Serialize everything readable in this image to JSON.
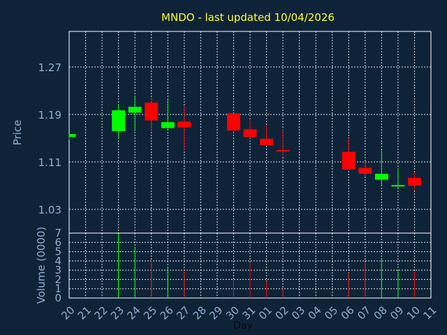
{
  "chart_data": {
    "type": "candlestick",
    "title": "MNDO - last updated 10/04/2026",
    "xlabel": "Day",
    "ylabel": "Price",
    "volume_label": "Volume (0000)",
    "price_ylim": [
      0.99,
      1.33
    ],
    "price_ticks": [
      "1.27",
      "1.19",
      "1.11",
      "1.03"
    ],
    "volume_ylim": [
      0,
      7
    ],
    "volume_ticks": [
      "7",
      "6",
      "5",
      "4",
      "3",
      "2",
      "1",
      "0"
    ],
    "categories": [
      "20",
      "21",
      "22",
      "23",
      "24",
      "25",
      "26",
      "27",
      "28",
      "29",
      "30",
      "31",
      "01",
      "02",
      "03",
      "04",
      "05",
      "06",
      "07",
      "08",
      "09",
      "10",
      "11"
    ],
    "colors": {
      "up": "#00ff00",
      "down": "#ff0000",
      "background": "#0f2338",
      "title": "#ffff33",
      "axis_text": "#8fb0d2"
    },
    "candles": [
      {
        "day": "20",
        "open": 1.152,
        "high": 1.157,
        "low": 1.147,
        "close": 1.157,
        "volume": 0
      },
      {
        "day": "23",
        "open": 1.162,
        "high": 1.207,
        "low": 1.15,
        "close": 1.197,
        "volume": 6.9
      },
      {
        "day": "24",
        "open": 1.193,
        "high": 1.222,
        "low": 1.162,
        "close": 1.203,
        "volume": 5.4
      },
      {
        "day": "25",
        "open": 1.21,
        "high": 1.218,
        "low": 1.162,
        "close": 1.18,
        "volume": 4.1
      },
      {
        "day": "26",
        "open": 1.167,
        "high": 1.215,
        "low": 1.164,
        "close": 1.177,
        "volume": 3.4
      },
      {
        "day": "27",
        "open": 1.178,
        "high": 1.205,
        "low": 1.13,
        "close": 1.168,
        "volume": 3.0
      },
      {
        "day": "30",
        "open": 1.192,
        "high": 1.192,
        "low": 1.16,
        "close": 1.163,
        "volume": 2.0
      },
      {
        "day": "31",
        "open": 1.165,
        "high": 1.18,
        "low": 1.15,
        "close": 1.152,
        "volume": 3.8
      },
      {
        "day": "01",
        "open": 1.149,
        "high": 1.172,
        "low": 1.138,
        "close": 1.138,
        "volume": 1.8
      },
      {
        "day": "02",
        "open": 1.13,
        "high": 1.165,
        "low": 1.12,
        "close": 1.128,
        "volume": 1.0
      },
      {
        "day": "06",
        "open": 1.127,
        "high": 1.15,
        "low": 1.097,
        "close": 1.097,
        "volume": 2.7
      },
      {
        "day": "07",
        "open": 1.1,
        "high": 1.11,
        "low": 1.087,
        "close": 1.09,
        "volume": 3.8
      },
      {
        "day": "08",
        "open": 1.08,
        "high": 1.13,
        "low": 1.07,
        "close": 1.09,
        "volume": 4.2
      },
      {
        "day": "09",
        "open": 1.07,
        "high": 1.1,
        "low": 1.066,
        "close": 1.071,
        "volume": 3.0
      },
      {
        "day": "10",
        "open": 1.083,
        "high": 1.092,
        "low": 1.062,
        "close": 1.07,
        "volume": 2.9
      }
    ]
  }
}
